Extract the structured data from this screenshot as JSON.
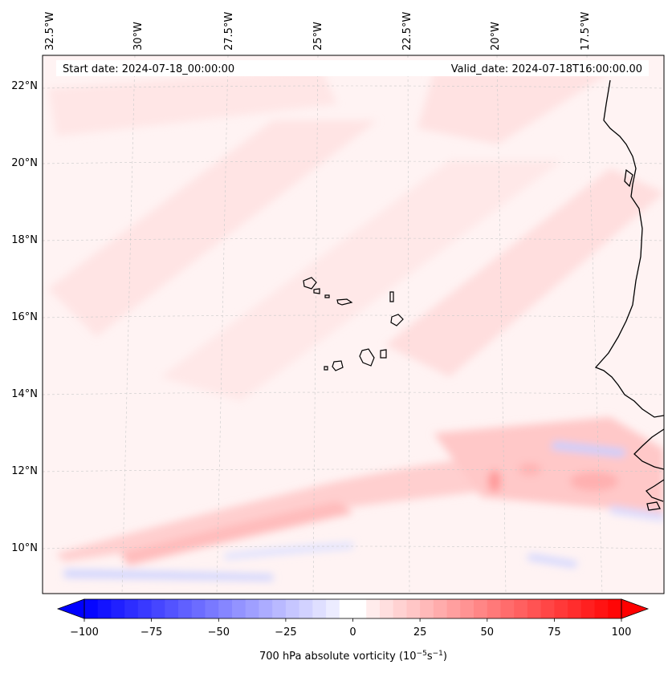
{
  "map": {
    "start_date_label": "Start date: 2024-07-18_00:00:00",
    "valid_date_label": "Valid_date: 2024-07-18T16:00:00.00",
    "longitude_labels": [
      "32.5°W",
      "30°W",
      "27.5°W",
      "25°W",
      "22.5°W",
      "20°W",
      "17.5°W"
    ],
    "latitude_labels": [
      "22°N",
      "20°N",
      "18°N",
      "16°N",
      "14°N",
      "12°N",
      "10°N"
    ],
    "features": [
      "Cape Verde islands",
      "West African coastline"
    ]
  },
  "colorbar": {
    "tick_labels": [
      "−100",
      "−75",
      "−50",
      "−25",
      "0",
      "25",
      "50",
      "75",
      "100"
    ],
    "tick_values": [
      -100,
      -75,
      -50,
      -25,
      0,
      25,
      50,
      75,
      100
    ],
    "min": -100,
    "max": 100,
    "step": 5,
    "label_main": "700 hPa absolute vorticity (10",
    "label_exp1": "−5",
    "label_mid": "s",
    "label_exp2": "−1",
    "label_end": ")",
    "colors": {
      "neg": "#0000ff",
      "zero": "#ffffff",
      "pos": "#ff0000"
    }
  }
}
